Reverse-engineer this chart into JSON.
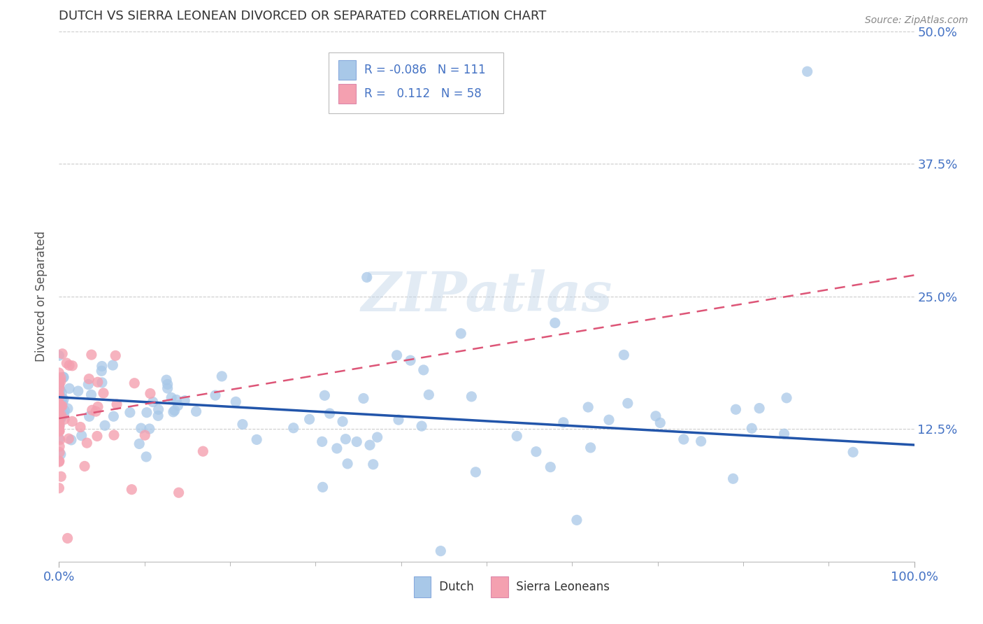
{
  "title": "DUTCH VS SIERRA LEONEAN DIVORCED OR SEPARATED CORRELATION CHART",
  "source": "Source: ZipAtlas.com",
  "ylabel": "Divorced or Separated",
  "xlim": [
    0.0,
    1.0
  ],
  "ylim": [
    0.0,
    0.5
  ],
  "ytick_positions": [
    0.125,
    0.25,
    0.375,
    0.5
  ],
  "ytick_labels": [
    "12.5%",
    "25.0%",
    "37.5%",
    "50.0%"
  ],
  "dutch_color": "#a8c8e8",
  "sierra_color": "#f4a0b0",
  "dutch_line_color": "#2255aa",
  "sierra_line_color": "#dd5577",
  "background_color": "#ffffff",
  "dutch_R": -0.086,
  "dutch_N": 111,
  "sierra_R": 0.112,
  "sierra_N": 58,
  "dutch_line_intercept": 0.155,
  "dutch_line_slope": -0.045,
  "sierra_line_intercept": 0.135,
  "sierra_line_slope": 0.135,
  "title_color": "#333333",
  "tick_color": "#4472c4",
  "grid_color": "#cccccc"
}
